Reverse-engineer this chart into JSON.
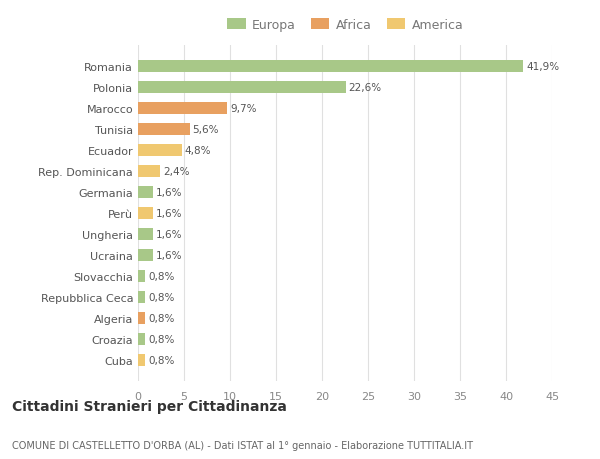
{
  "categories": [
    "Cuba",
    "Croazia",
    "Algeria",
    "Repubblica Ceca",
    "Slovacchia",
    "Ucraina",
    "Ungheria",
    "Perù",
    "Germania",
    "Rep. Dominicana",
    "Ecuador",
    "Tunisia",
    "Marocco",
    "Polonia",
    "Romania"
  ],
  "values": [
    0.8,
    0.8,
    0.8,
    0.8,
    0.8,
    1.6,
    1.6,
    1.6,
    1.6,
    2.4,
    4.8,
    5.6,
    9.7,
    22.6,
    41.9
  ],
  "colors": [
    "#f0c870",
    "#a8c888",
    "#e8a060",
    "#a8c888",
    "#a8c888",
    "#a8c888",
    "#a8c888",
    "#f0c870",
    "#a8c888",
    "#f0c870",
    "#f0c870",
    "#e8a060",
    "#e8a060",
    "#a8c888",
    "#a8c888"
  ],
  "labels": [
    "0,8%",
    "0,8%",
    "0,8%",
    "0,8%",
    "0,8%",
    "1,6%",
    "1,6%",
    "1,6%",
    "1,6%",
    "2,4%",
    "4,8%",
    "5,6%",
    "9,7%",
    "22,6%",
    "41,9%"
  ],
  "legend": [
    {
      "label": "Europa",
      "color": "#a8c888"
    },
    {
      "label": "Africa",
      "color": "#e8a060"
    },
    {
      "label": "America",
      "color": "#f0c870"
    }
  ],
  "xlim": [
    0,
    45
  ],
  "xticks": [
    0,
    5,
    10,
    15,
    20,
    25,
    30,
    35,
    40,
    45
  ],
  "title": "Cittadini Stranieri per Cittadinanza",
  "subtitle": "COMUNE DI CASTELLETTO D'ORBA (AL) - Dati ISTAT al 1° gennaio - Elaborazione TUTTITALIA.IT",
  "background_color": "#ffffff",
  "grid_color": "#e0e0e0",
  "bar_height": 0.55
}
